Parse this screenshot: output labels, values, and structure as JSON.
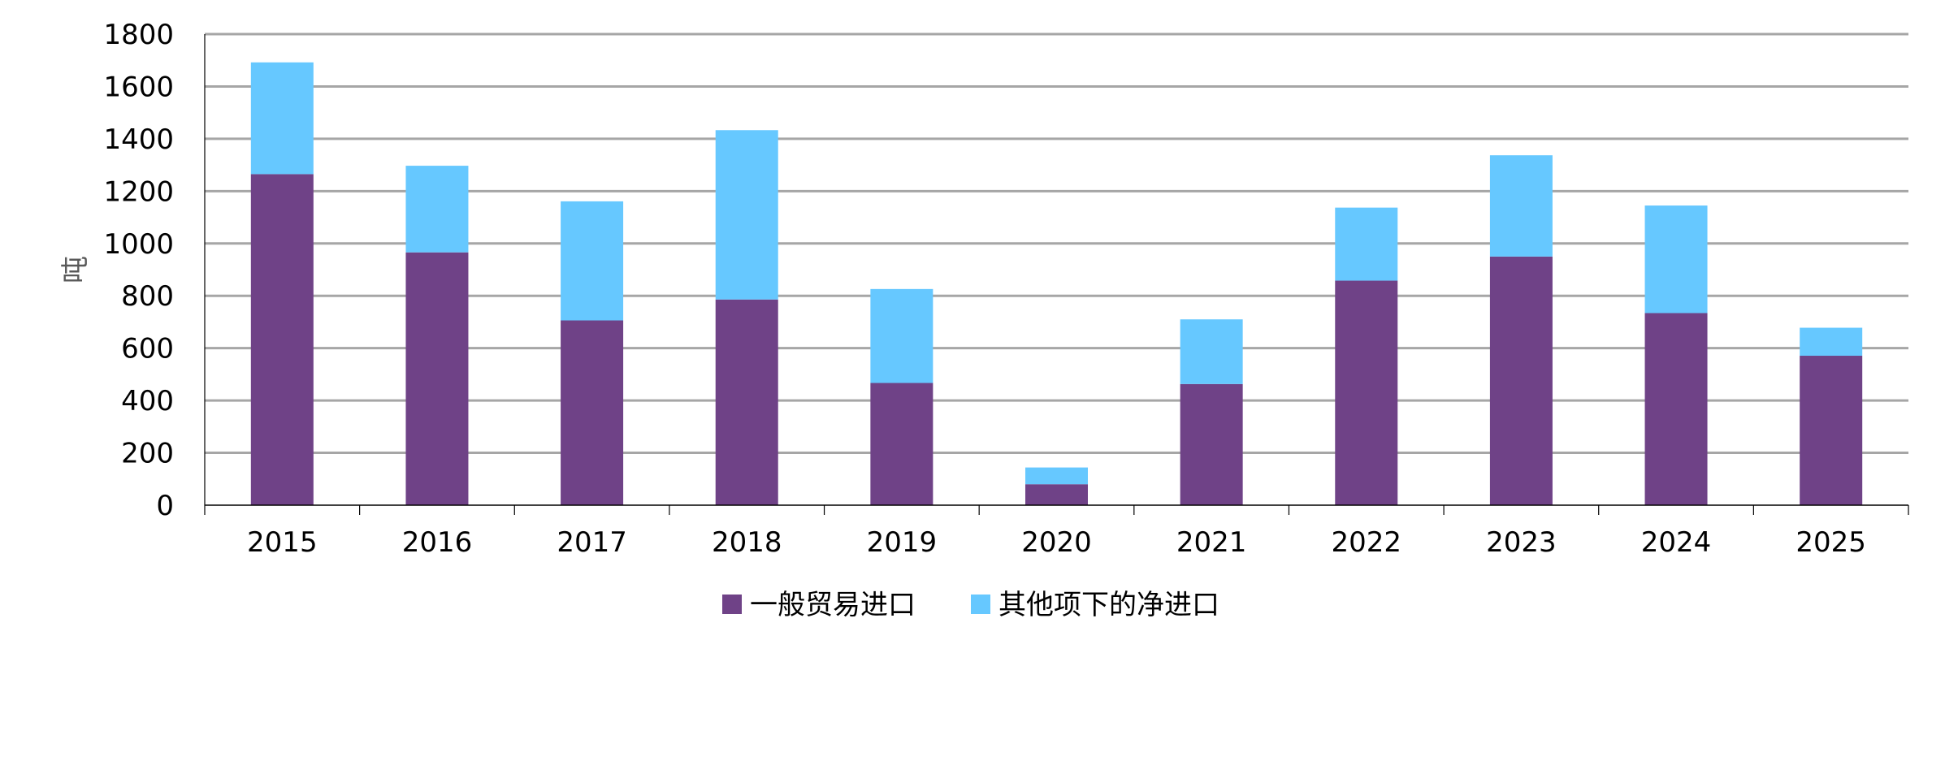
{
  "chart_data": {
    "type": "bar",
    "stacked": true,
    "title": "",
    "xlabel": "",
    "ylabel": "吨",
    "ylim": [
      0,
      1800
    ],
    "yticks": [
      0,
      200,
      400,
      600,
      800,
      1000,
      1200,
      1400,
      1600,
      1800
    ],
    "grid": true,
    "legend_position": "bottom",
    "categories": [
      "2015",
      "2016",
      "2017",
      "2018",
      "2019",
      "2020",
      "2021",
      "2022",
      "2023",
      "2024",
      "2025"
    ],
    "series": [
      {
        "name": "一般贸易进口",
        "color": "#6f4287",
        "values": [
          1265,
          966,
          706,
          786,
          467,
          80,
          463,
          858,
          950,
          734,
          571
        ]
      },
      {
        "name": "其他项下的净进口",
        "color": "#66c8ff",
        "values": [
          427,
          331,
          455,
          647,
          359,
          64,
          247,
          279,
          387,
          411,
          107
        ]
      }
    ],
    "gridline_color": "#a6a6a6"
  }
}
